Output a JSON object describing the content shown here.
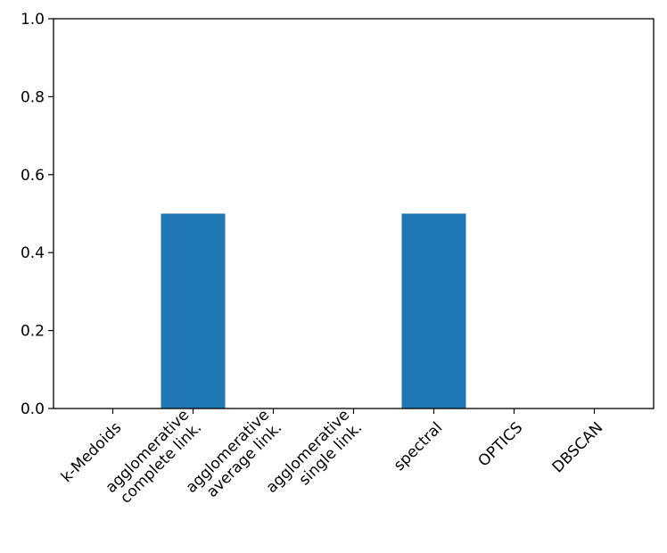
{
  "chart_data": {
    "type": "bar",
    "categories": [
      [
        "k-Medoids"
      ],
      [
        "agglomerative",
        "complete link."
      ],
      [
        "agglomerative",
        "average link."
      ],
      [
        "agglomerative",
        "single link."
      ],
      [
        "spectral"
      ],
      [
        "OPTICS"
      ],
      [
        "DBSCAN"
      ]
    ],
    "values": [
      0.0,
      0.5,
      0.0,
      0.0,
      0.5,
      0.0,
      0.0
    ],
    "title": "",
    "xlabel": "",
    "ylabel": "",
    "ylim": [
      0,
      1.0
    ],
    "yticks": [
      "0.0",
      "0.2",
      "0.4",
      "0.6",
      "0.8",
      "1.0"
    ],
    "grid": false,
    "bar_color": "#1f77b4"
  }
}
